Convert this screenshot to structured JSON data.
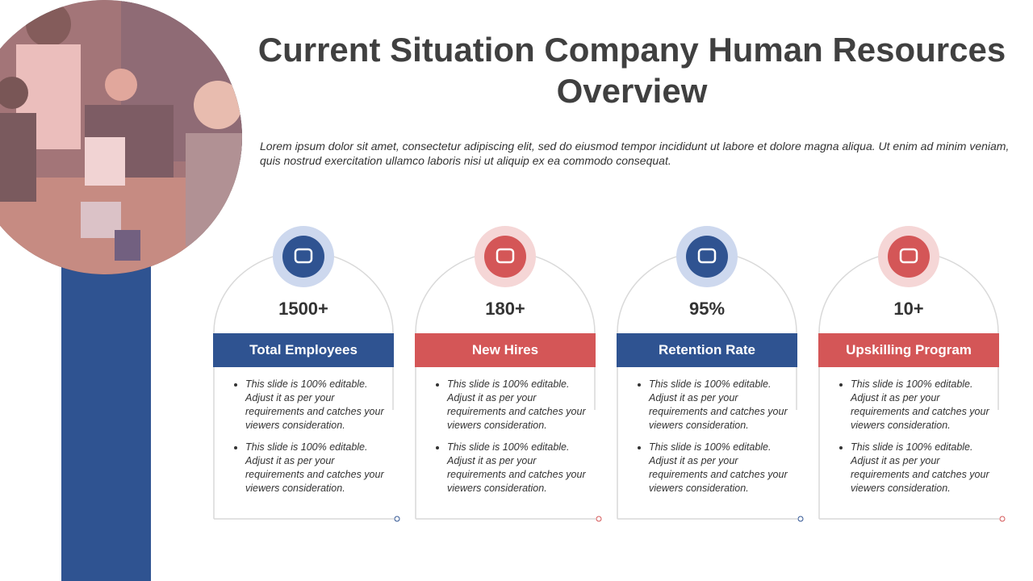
{
  "header": {
    "title": "Current Situation Company Human Resources Overview",
    "description": "Lorem ipsum dolor sit amet, consectetur adipiscing elit, sed do eiusmod tempor incididunt ut labore et dolore magna aliqua. Ut enim ad minim veniam, quis nostrud exercitation ullamco laboris nisi ut aliquip ex ea commodo consequat."
  },
  "cards": [
    {
      "value": "1500+",
      "label": "Total Employees",
      "color": "#2f5391",
      "ring": "#cdd8ee",
      "bullets": [
        "This slide is 100% editable. Adjust it as per your requirements and catches your viewers consideration.",
        "This slide is 100% editable. Adjust it as per your requirements and catches your viewers consideration."
      ]
    },
    {
      "value": "180+",
      "label": "New Hires",
      "color": "#d45657",
      "ring": "#f5d6d6",
      "bullets": [
        "This slide is 100% editable. Adjust it as per your requirements and catches your viewers consideration.",
        "This slide is 100% editable. Adjust it as per your requirements and catches your viewers consideration."
      ]
    },
    {
      "value": "95%",
      "label": "Retention Rate",
      "color": "#2f5391",
      "ring": "#cdd8ee",
      "bullets": [
        "This slide is 100% editable. Adjust it as per your requirements and catches your viewers consideration.",
        "This slide is 100% editable. Adjust it as per your requirements and catches your viewers consideration."
      ]
    },
    {
      "value": "10+",
      "label": "Upskilling Program",
      "color": "#d45657",
      "ring": "#f5d6d6",
      "bullets": [
        "This slide is 100% editable. Adjust it as per your requirements and catches your viewers consideration.",
        "This slide is 100% editable. Adjust it as per your requirements and catches your viewers consideration."
      ]
    }
  ]
}
